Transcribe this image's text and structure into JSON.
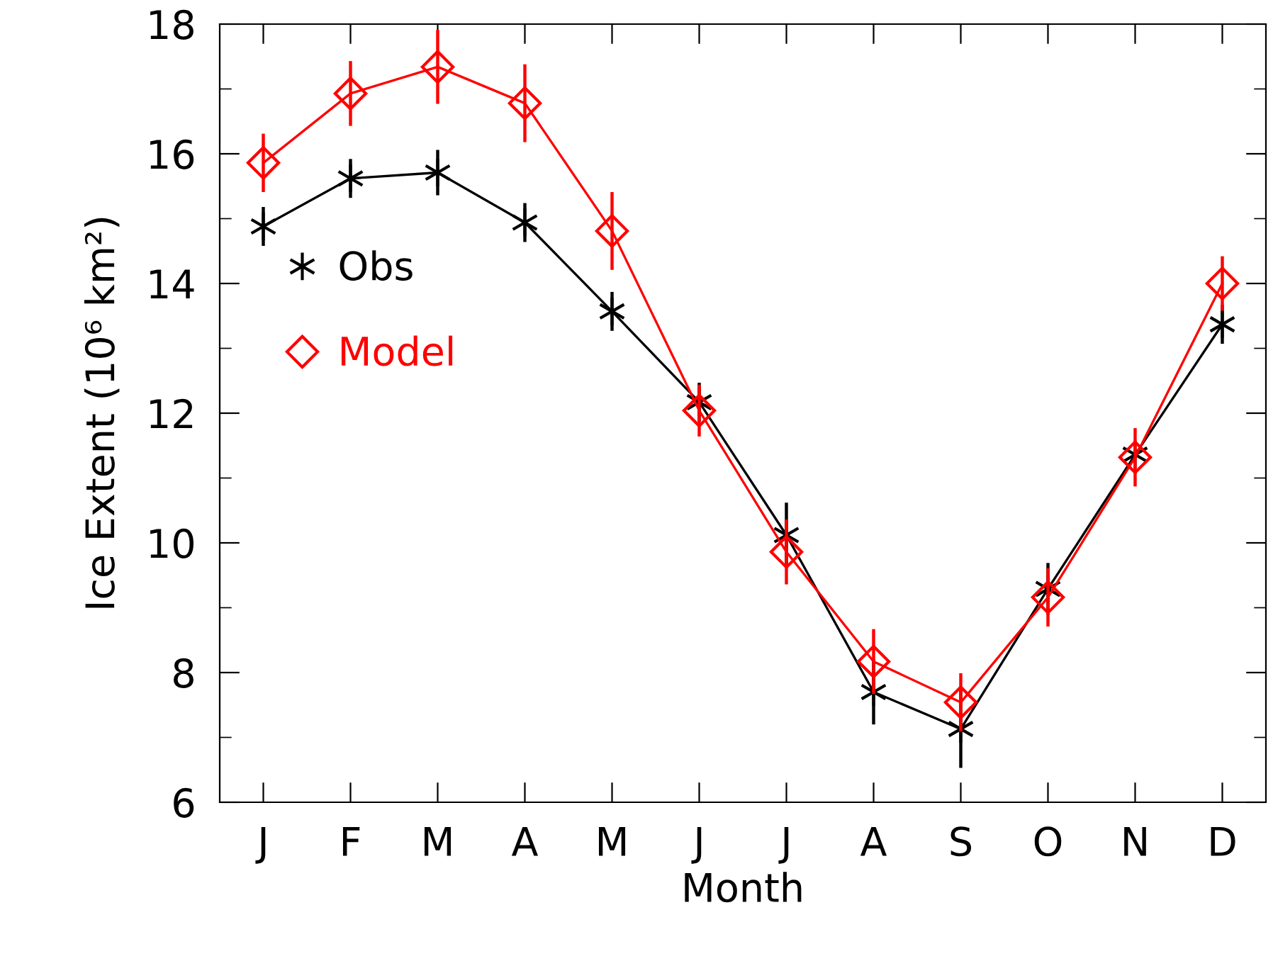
{
  "chart_data": {
    "type": "line",
    "xlabel": "Month",
    "ylabel": "Ice Extent (10⁶ km²)",
    "categories": [
      "J",
      "F",
      "M",
      "A",
      "M",
      "J",
      "J",
      "A",
      "S",
      "O",
      "N",
      "D"
    ],
    "ylim": [
      6,
      18
    ],
    "yticks": [
      6,
      8,
      10,
      12,
      14,
      16,
      18
    ],
    "grid": false,
    "legend": "left",
    "series": [
      {
        "name": "Obs",
        "color": "#000000",
        "marker": "cross",
        "values": [
          14.88,
          15.62,
          15.71,
          14.94,
          13.57,
          12.17,
          10.12,
          7.7,
          7.13,
          9.29,
          11.36,
          13.37
        ],
        "errors": [
          0.3,
          0.3,
          0.35,
          0.3,
          0.3,
          0.3,
          0.5,
          0.5,
          0.6,
          0.4,
          null,
          0.3
        ]
      },
      {
        "name": "Model",
        "color": "#ff0000",
        "marker": "diamond",
        "values": [
          15.86,
          16.93,
          17.34,
          16.78,
          14.81,
          12.04,
          9.86,
          8.17,
          7.54,
          9.16,
          11.32,
          14.0
        ],
        "errors": [
          0.45,
          0.5,
          0.57,
          0.6,
          0.6,
          0.4,
          0.5,
          0.5,
          0.45,
          0.45,
          0.45,
          0.42
        ]
      }
    ]
  }
}
